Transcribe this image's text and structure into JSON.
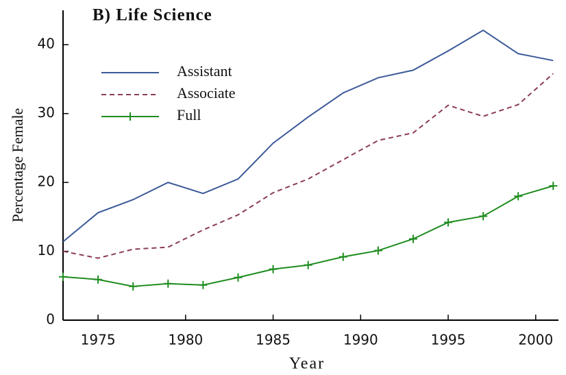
{
  "chart_data": {
    "type": "line",
    "title": "B) Life Science",
    "x_label": "Year",
    "y_label": "Percentage Female",
    "x": [
      1973,
      1975,
      1977,
      1979,
      1981,
      1983,
      1985,
      1987,
      1989,
      1991,
      1993,
      1995,
      1997,
      1999,
      2001
    ],
    "series": [
      {
        "name": "Assistant",
        "color": "#3b5998",
        "style": "solid",
        "marker": "none",
        "values": [
          11.4,
          15.6,
          17.5,
          20,
          18.4,
          20.5,
          25.7,
          29.5,
          33,
          35.2,
          36.3,
          39.1,
          42.1,
          38.7,
          37.7
        ]
      },
      {
        "name": "Associate",
        "color": "#8b3a5a",
        "style": "dashed",
        "marker": "none",
        "values": [
          10,
          9,
          10.3,
          10.6,
          13.1,
          15.3,
          18.5,
          20.5,
          23.3,
          26.1,
          27.2,
          31.2,
          29.6,
          31.3,
          35.8
        ]
      },
      {
        "name": "Full",
        "color": "#1e8c1e",
        "style": "solid",
        "marker": "plus",
        "values": [
          6.3,
          5.9,
          4.9,
          5.3,
          5.1,
          6.2,
          7.4,
          8,
          9.2,
          10.1,
          11.8,
          14.2,
          15.1,
          18,
          19.5
        ]
      }
    ],
    "xlim": [
      1973,
      2001.3
    ],
    "xticks": [
      1975,
      1980,
      1985,
      1990,
      1995,
      2000
    ],
    "ylim": [
      0,
      45
    ],
    "yticks": [
      0,
      10,
      20,
      30,
      40
    ],
    "grid": false,
    "legend": "upper left"
  }
}
